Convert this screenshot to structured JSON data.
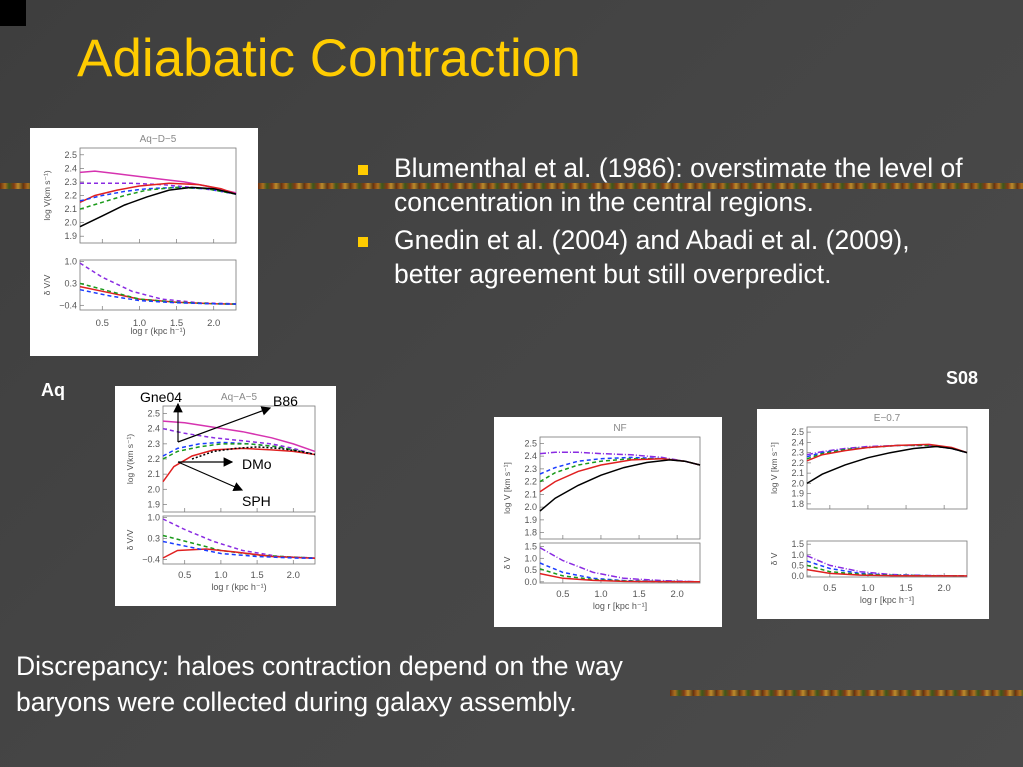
{
  "slide": {
    "title": "Adiabatic Contraction",
    "bullets": [
      "Blumenthal et al. (1986): overstimate the level of concentration in the central regions.",
      "Gnedin et al. (2004) and Abadi et al. (2009), better agreement but still overpredict."
    ],
    "bottom_text": "Discrepancy: haloes contraction depend on the way baryons were collected during galaxy assembly.",
    "label_aq": "Aq",
    "label_s08": "S08",
    "annotations": {
      "gne04": "Gne04",
      "b86": "B86",
      "dmo": "DMo",
      "sph": "SPH"
    }
  },
  "chart_data": [
    {
      "type": "line",
      "title": "Aq−D−5",
      "xlabel": "log r (kpc h⁻¹)",
      "ylabel_top": "log V(km s⁻¹)",
      "ylabel_bottom": "δ V/V",
      "xlim": [
        0.2,
        2.3
      ],
      "ylim_top": [
        1.85,
        2.55
      ],
      "yticks_top": [
        "2.5",
        "2.4",
        "2.3",
        "2.2",
        "2.1",
        "2.0",
        "1.9"
      ],
      "ylim_bottom": [
        -0.55,
        1.05
      ],
      "yticks_bottom": [
        "1.0",
        "0.3",
        "−0.4"
      ],
      "xticks": [
        "0.5",
        "1.0",
        "1.5",
        "2.0"
      ],
      "series_top": [
        {
          "color": "#d633b0",
          "dash": "",
          "x": [
            0.2,
            0.4,
            0.7,
            1.0,
            1.3,
            1.6,
            1.9,
            2.3
          ],
          "y": [
            2.37,
            2.38,
            2.36,
            2.34,
            2.32,
            2.3,
            2.27,
            2.22
          ]
        },
        {
          "color": "#8a2be2",
          "dash": "4,3",
          "x": [
            0.2,
            0.5,
            0.9,
            1.3,
            1.7,
            2.0,
            2.3
          ],
          "y": [
            2.29,
            2.29,
            2.29,
            2.28,
            2.26,
            2.24,
            2.21
          ]
        },
        {
          "color": "#e02020",
          "dash": "",
          "x": [
            0.2,
            0.4,
            0.7,
            1.0,
            1.4,
            1.8,
            2.1,
            2.3
          ],
          "y": [
            2.15,
            2.2,
            2.24,
            2.27,
            2.29,
            2.28,
            2.25,
            2.21
          ]
        },
        {
          "color": "#1a3cff",
          "dash": "4,3",
          "x": [
            0.2,
            0.5,
            0.8,
            1.1,
            1.5,
            1.9,
            2.3
          ],
          "y": [
            2.16,
            2.2,
            2.23,
            2.25,
            2.26,
            2.25,
            2.21
          ]
        },
        {
          "color": "#1a9a1a",
          "dash": "4,3",
          "x": [
            0.2,
            0.5,
            0.8,
            1.1,
            1.5,
            1.9,
            2.3
          ],
          "y": [
            2.1,
            2.15,
            2.2,
            2.24,
            2.26,
            2.25,
            2.21
          ]
        },
        {
          "color": "#000000",
          "dash": "",
          "x": [
            0.2,
            0.5,
            0.8,
            1.1,
            1.4,
            1.7,
            2.0,
            2.3
          ],
          "y": [
            1.97,
            2.05,
            2.13,
            2.19,
            2.24,
            2.26,
            2.25,
            2.21
          ]
        }
      ],
      "series_bottom": [
        {
          "color": "#8a2be2",
          "dash": "4,3",
          "x": [
            0.2,
            0.5,
            0.9,
            1.3,
            1.8,
            2.3
          ],
          "y": [
            0.95,
            0.5,
            0.05,
            -0.2,
            -0.32,
            -0.35
          ]
        },
        {
          "color": "#e02020",
          "dash": "",
          "x": [
            0.2,
            0.6,
            1.0,
            1.5,
            2.0,
            2.3
          ],
          "y": [
            0.2,
            0.0,
            -0.2,
            -0.3,
            -0.35,
            -0.36
          ]
        },
        {
          "color": "#1a9a1a",
          "dash": "4,3",
          "x": [
            0.2,
            0.6,
            1.0,
            1.5,
            2.0,
            2.3
          ],
          "y": [
            0.3,
            0.05,
            -0.2,
            -0.3,
            -0.35,
            -0.36
          ]
        },
        {
          "color": "#1a3cff",
          "dash": "4,3",
          "x": [
            0.2,
            0.6,
            1.0,
            1.5,
            2.0,
            2.3
          ],
          "y": [
            0.1,
            -0.1,
            -0.25,
            -0.32,
            -0.35,
            -0.36
          ]
        }
      ]
    },
    {
      "type": "line",
      "title": "Aq−A−5",
      "xlabel": "log r (kpc h⁻¹)",
      "ylabel_top": "log V(km s⁻¹)",
      "ylabel_bottom": "δ V/V",
      "xlim": [
        0.2,
        2.3
      ],
      "ylim_top": [
        1.85,
        2.55
      ],
      "yticks_top": [
        "2.5",
        "2.4",
        "2.3",
        "2.2",
        "2.1",
        "2.0",
        "1.9"
      ],
      "ylim_bottom": [
        -0.55,
        1.05
      ],
      "yticks_bottom": [
        "1.0",
        "0.3",
        "−0.4"
      ],
      "xticks": [
        "0.5",
        "1.0",
        "1.5",
        "2.0"
      ],
      "series_top": [
        {
          "color": "#d633b0",
          "dash": "",
          "x": [
            0.2,
            0.5,
            0.9,
            1.3,
            1.7,
            2.0,
            2.3
          ],
          "y": [
            2.45,
            2.44,
            2.41,
            2.38,
            2.34,
            2.3,
            2.25
          ]
        },
        {
          "color": "#8a2be2",
          "dash": "4,3",
          "x": [
            0.2,
            0.5,
            0.9,
            1.3,
            1.7,
            2.0,
            2.3
          ],
          "y": [
            2.4,
            2.37,
            2.34,
            2.32,
            2.3,
            2.27,
            2.23
          ]
        },
        {
          "color": "#1a3cff",
          "dash": "4,3",
          "x": [
            0.2,
            0.4,
            0.7,
            1.0,
            1.4,
            1.8,
            2.3
          ],
          "y": [
            2.22,
            2.27,
            2.3,
            2.31,
            2.3,
            2.28,
            2.23
          ]
        },
        {
          "color": "#1a9a1a",
          "dash": "4,3",
          "x": [
            0.2,
            0.4,
            0.7,
            1.0,
            1.4,
            1.8,
            2.3
          ],
          "y": [
            2.2,
            2.25,
            2.28,
            2.3,
            2.3,
            2.28,
            2.23
          ]
        },
        {
          "color": "#e02020",
          "dash": "",
          "x": [
            0.2,
            0.35,
            0.6,
            0.9,
            1.3,
            1.7,
            2.0,
            2.3
          ],
          "y": [
            2.05,
            2.15,
            2.22,
            2.26,
            2.27,
            2.26,
            2.25,
            2.23
          ]
        },
        {
          "color": "#000000",
          "dash": "2,2",
          "x": [
            0.6,
            0.9,
            1.2,
            1.5,
            1.8,
            2.1,
            2.3
          ],
          "y": [
            2.2,
            2.25,
            2.27,
            2.28,
            2.27,
            2.25,
            2.23
          ]
        }
      ],
      "series_bottom": [
        {
          "color": "#8a2be2",
          "dash": "4,3",
          "x": [
            0.2,
            0.5,
            0.9,
            1.3,
            1.8,
            2.3
          ],
          "y": [
            0.95,
            0.6,
            0.2,
            -0.1,
            -0.3,
            -0.35
          ]
        },
        {
          "color": "#1a9a1a",
          "dash": "4,3",
          "x": [
            0.2,
            0.6,
            1.0,
            1.5,
            2.0,
            2.3
          ],
          "y": [
            0.4,
            0.15,
            -0.1,
            -0.25,
            -0.32,
            -0.35
          ]
        },
        {
          "color": "#e02020",
          "dash": "",
          "x": [
            0.2,
            0.4,
            0.8,
            1.2,
            1.7,
            2.3
          ],
          "y": [
            -0.35,
            -0.1,
            -0.05,
            -0.15,
            -0.3,
            -0.36
          ]
        },
        {
          "color": "#1a3cff",
          "dash": "4,3",
          "x": [
            0.2,
            0.6,
            1.0,
            1.5,
            2.0,
            2.3
          ],
          "y": [
            0.2,
            0.0,
            -0.2,
            -0.3,
            -0.35,
            -0.36
          ]
        }
      ]
    },
    {
      "type": "line",
      "title": "NF",
      "xlabel": "log r [kpc h⁻¹]",
      "ylabel_top": "log V [km s⁻¹]",
      "ylabel_bottom": "δ V",
      "xlim": [
        0.2,
        2.3
      ],
      "ylim_top": [
        1.75,
        2.55
      ],
      "yticks_top": [
        "2.5",
        "2.4",
        "2.3",
        "2.2",
        "2.1",
        "2.0",
        "1.9",
        "1.8"
      ],
      "ylim_bottom": [
        -0.05,
        1.65
      ],
      "yticks_bottom": [
        "1.5",
        "1.0",
        "0.5",
        "0.0"
      ],
      "xticks": [
        "0.5",
        "1.0",
        "1.5",
        "2.0"
      ],
      "series_top": [
        {
          "color": "#8a2be2",
          "dash": "6,2,1,2",
          "x": [
            0.2,
            0.4,
            0.7,
            1.0,
            1.4,
            1.8,
            2.1,
            2.3
          ],
          "y": [
            2.42,
            2.43,
            2.43,
            2.42,
            2.41,
            2.39,
            2.36,
            2.33
          ]
        },
        {
          "color": "#1a3cff",
          "dash": "4,3",
          "x": [
            0.2,
            0.4,
            0.7,
            1.0,
            1.4,
            1.8,
            2.1,
            2.3
          ],
          "y": [
            2.26,
            2.31,
            2.36,
            2.38,
            2.39,
            2.38,
            2.36,
            2.33
          ]
        },
        {
          "color": "#1a9a1a",
          "dash": "4,3",
          "x": [
            0.2,
            0.4,
            0.7,
            1.0,
            1.4,
            1.8,
            2.1,
            2.3
          ],
          "y": [
            2.2,
            2.27,
            2.33,
            2.36,
            2.38,
            2.38,
            2.36,
            2.33
          ]
        },
        {
          "color": "#e02020",
          "dash": "",
          "x": [
            0.2,
            0.4,
            0.7,
            1.0,
            1.4,
            1.8,
            2.1,
            2.3
          ],
          "y": [
            2.12,
            2.2,
            2.28,
            2.33,
            2.37,
            2.38,
            2.36,
            2.33
          ]
        },
        {
          "color": "#000000",
          "dash": "",
          "x": [
            0.2,
            0.4,
            0.7,
            1.0,
            1.3,
            1.6,
            1.9,
            2.1,
            2.3
          ],
          "y": [
            1.97,
            2.07,
            2.17,
            2.25,
            2.31,
            2.35,
            2.37,
            2.36,
            2.33
          ]
        }
      ],
      "series_bottom": [
        {
          "color": "#8a2be2",
          "dash": "6,2,1,2",
          "x": [
            0.2,
            0.5,
            0.9,
            1.3,
            1.8,
            2.3
          ],
          "y": [
            1.45,
            0.9,
            0.4,
            0.15,
            0.05,
            0.0
          ]
        },
        {
          "color": "#1a3cff",
          "dash": "4,3",
          "x": [
            0.2,
            0.5,
            0.9,
            1.3,
            1.8,
            2.3
          ],
          "y": [
            0.8,
            0.4,
            0.15,
            0.05,
            0.02,
            0.0
          ]
        },
        {
          "color": "#1a9a1a",
          "dash": "4,3",
          "x": [
            0.2,
            0.5,
            0.9,
            1.3,
            1.8,
            2.3
          ],
          "y": [
            0.55,
            0.25,
            0.1,
            0.04,
            0.01,
            0.0
          ]
        },
        {
          "color": "#e02020",
          "dash": "",
          "x": [
            0.2,
            0.5,
            0.9,
            1.3,
            1.8,
            2.3
          ],
          "y": [
            0.35,
            0.15,
            0.06,
            0.02,
            0.01,
            0.0
          ]
        }
      ]
    },
    {
      "type": "line",
      "title": "E−0.7",
      "xlabel": "log r [kpc h⁻¹]",
      "ylabel_top": "log V [km s⁻¹]",
      "ylabel_bottom": "δ V",
      "xlim": [
        0.2,
        2.3
      ],
      "ylim_top": [
        1.75,
        2.55
      ],
      "yticks_top": [
        "2.5",
        "2.4",
        "2.3",
        "2.2",
        "2.1",
        "2.0",
        "1.9",
        "1.8"
      ],
      "ylim_bottom": [
        -0.05,
        1.65
      ],
      "yticks_bottom": [
        "1.5",
        "1.0",
        "0.5",
        "0.0"
      ],
      "xticks": [
        "0.5",
        "1.0",
        "1.5",
        "2.0"
      ],
      "series_top": [
        {
          "color": "#8a2be2",
          "dash": "6,2,1,2",
          "x": [
            0.2,
            0.4,
            0.7,
            1.0,
            1.4,
            1.8,
            2.1,
            2.3
          ],
          "y": [
            2.28,
            2.31,
            2.34,
            2.36,
            2.37,
            2.37,
            2.34,
            2.3
          ]
        },
        {
          "color": "#1a3cff",
          "dash": "4,3",
          "x": [
            0.2,
            0.4,
            0.7,
            1.0,
            1.4,
            1.8,
            2.1,
            2.3
          ],
          "y": [
            2.26,
            2.3,
            2.33,
            2.35,
            2.37,
            2.37,
            2.34,
            2.3
          ]
        },
        {
          "color": "#1a9a1a",
          "dash": "4,3",
          "x": [
            0.2,
            0.4,
            0.7,
            1.0,
            1.4,
            1.8,
            2.1,
            2.3
          ],
          "y": [
            2.24,
            2.29,
            2.33,
            2.35,
            2.37,
            2.37,
            2.34,
            2.3
          ]
        },
        {
          "color": "#e02020",
          "dash": "",
          "x": [
            0.2,
            0.4,
            0.7,
            1.0,
            1.4,
            1.8,
            2.1,
            2.3
          ],
          "y": [
            2.22,
            2.28,
            2.32,
            2.35,
            2.37,
            2.38,
            2.35,
            2.3
          ]
        },
        {
          "color": "#000000",
          "dash": "",
          "x": [
            0.2,
            0.4,
            0.7,
            1.0,
            1.3,
            1.6,
            1.9,
            2.1,
            2.3
          ],
          "y": [
            2.0,
            2.09,
            2.18,
            2.25,
            2.3,
            2.34,
            2.36,
            2.34,
            2.3
          ]
        }
      ],
      "series_bottom": [
        {
          "color": "#8a2be2",
          "dash": "6,2,1,2",
          "x": [
            0.2,
            0.5,
            0.9,
            1.3,
            1.8,
            2.3
          ],
          "y": [
            0.95,
            0.5,
            0.2,
            0.07,
            0.02,
            0.0
          ]
        },
        {
          "color": "#1a3cff",
          "dash": "4,3",
          "x": [
            0.2,
            0.5,
            0.9,
            1.3,
            1.8,
            2.3
          ],
          "y": [
            0.7,
            0.35,
            0.12,
            0.04,
            0.01,
            0.0
          ]
        },
        {
          "color": "#1a9a1a",
          "dash": "4,3",
          "x": [
            0.2,
            0.5,
            0.9,
            1.3,
            1.8,
            2.3
          ],
          "y": [
            0.5,
            0.2,
            0.08,
            0.03,
            0.01,
            0.0
          ]
        },
        {
          "color": "#e02020",
          "dash": "",
          "x": [
            0.2,
            0.5,
            0.9,
            1.3,
            1.8,
            2.3
          ],
          "y": [
            0.3,
            0.12,
            0.04,
            0.01,
            0.0,
            0.0
          ]
        }
      ]
    }
  ]
}
